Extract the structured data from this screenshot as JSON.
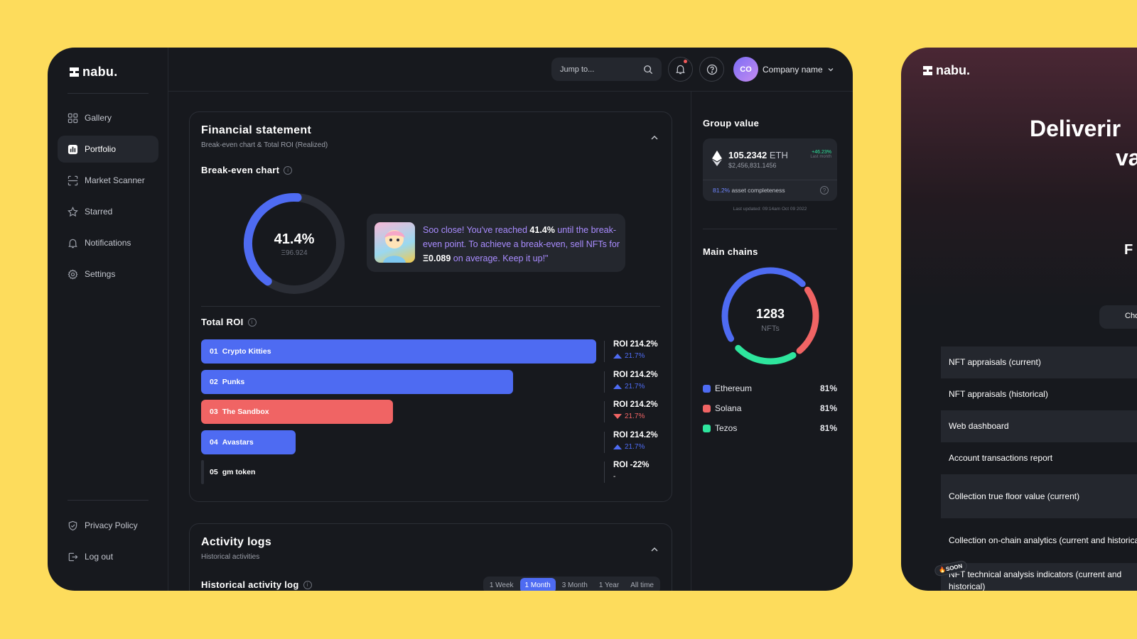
{
  "brand": "nabu.",
  "sidebar": {
    "items": [
      {
        "label": "Gallery",
        "icon": "grid-icon"
      },
      {
        "label": "Portfolio",
        "icon": "bar-chart-icon",
        "active": true
      },
      {
        "label": "Market Scanner",
        "icon": "scanner-icon"
      },
      {
        "label": "Starred",
        "icon": "star-icon"
      },
      {
        "label": "Notifications",
        "icon": "bell-icon"
      },
      {
        "label": "Settings",
        "icon": "gear-icon"
      }
    ],
    "footer": [
      {
        "label": "Privacy Policy",
        "icon": "shield-icon"
      },
      {
        "label": "Log out",
        "icon": "logout-icon"
      }
    ]
  },
  "topbar": {
    "search_placeholder": "Jump to...",
    "avatar_initials": "CO",
    "company": "Company name"
  },
  "financial": {
    "title": "Financial statement",
    "subtitle": "Break-even chart & Total ROI (Realized)",
    "breakeven_title": "Break-even chart",
    "gauge_pct": "41.4%",
    "gauge_value": "Ξ96.924",
    "gauge_progress": 0.414,
    "tip": {
      "part1": "Soo close! You've reached ",
      "pct": "41.4%",
      "part2": " until the break-even point. To achieve a break-even, sell NFTs for ",
      "amount": "Ξ0.089",
      "part3": " on average. Keep it up!\""
    },
    "roi_title": "Total ROI",
    "roi_rows": [
      {
        "rank": "01",
        "name": "Crypto Kitties",
        "roi": "ROI  214.2%",
        "change": "21.7%",
        "dir": "up",
        "fill": 1.0,
        "color": "#4e6bf2"
      },
      {
        "rank": "02",
        "name": "Punks",
        "roi": "ROI  214.2%",
        "change": "21.7%",
        "dir": "up",
        "fill": 0.79,
        "color": "#4e6bf2"
      },
      {
        "rank": "03",
        "name": "The Sandbox",
        "roi": "ROI  214.2%",
        "change": "21.7%",
        "dir": "down",
        "fill": 0.485,
        "color": "#f06464"
      },
      {
        "rank": "04",
        "name": "Avastars",
        "roi": "ROI  214.2%",
        "change": "21.7%",
        "dir": "up",
        "fill": 0.24,
        "color": "#4e6bf2"
      },
      {
        "rank": "05",
        "name": "gm token",
        "roi": "ROI  -22%",
        "change": "-",
        "dir": "none",
        "fill": 0,
        "color": "#2b2e36"
      }
    ]
  },
  "activity": {
    "title": "Activity logs",
    "subtitle": "Historical activities",
    "log_title": "Historical activity log",
    "ranges": [
      "1 Week",
      "1 Month",
      "3 Month",
      "1 Year",
      "All time"
    ],
    "active_range": "1 Month"
  },
  "group_value": {
    "title": "Group value",
    "eth": "105.2342",
    "eth_unit": "ETH",
    "usd": "$2,456,831.1456",
    "change": "+46.23%",
    "change_period": "Last month",
    "completeness_pct": "81.2%",
    "completeness_label": " asset completeness",
    "updated": "Last updated: 09:14am Oct 09 2022"
  },
  "main_chains": {
    "title": "Main chains",
    "total": "1283",
    "total_label": "NFTs",
    "chains": [
      {
        "name": "Ethereum",
        "pct": "81%",
        "color": "#4e6bf2"
      },
      {
        "name": "Solana",
        "pct": "81%",
        "color": "#f06464"
      },
      {
        "name": "Tezos",
        "pct": "81%",
        "color": "#2ee59d"
      }
    ]
  },
  "second_window": {
    "hero_line1": "Deliverir",
    "hero_line2": "va",
    "sub_letter": "F",
    "button": "Cho",
    "features": [
      "NFT appraisals (current)",
      "NFT appraisals (historical)",
      "Web dashboard",
      "Account transactions report",
      "Collection true floor value (current)",
      "Collection on-chain analytics (current and historical)",
      "NFT technical analysis indicators (current and historical)"
    ],
    "soon_badge": "🔥SOON"
  }
}
